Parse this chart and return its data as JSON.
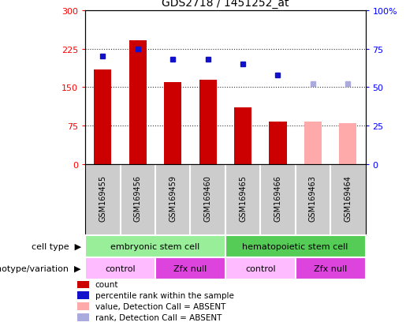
{
  "title": "GDS2718 / 1451252_at",
  "samples": [
    "GSM169455",
    "GSM169456",
    "GSM169459",
    "GSM169460",
    "GSM169465",
    "GSM169466",
    "GSM169463",
    "GSM169464"
  ],
  "bar_values": [
    185,
    242,
    160,
    165,
    110,
    83,
    83,
    80
  ],
  "bar_colors": [
    "#cc0000",
    "#cc0000",
    "#cc0000",
    "#cc0000",
    "#cc0000",
    "#cc0000",
    "#ffaaaa",
    "#ffaaaa"
  ],
  "rank_values": [
    70,
    75,
    68,
    68,
    65,
    58,
    52,
    52
  ],
  "rank_colors": [
    "#1111cc",
    "#1111cc",
    "#1111cc",
    "#1111cc",
    "#1111cc",
    "#1111cc",
    "#aaaadd",
    "#aaaadd"
  ],
  "ylim_left": [
    0,
    300
  ],
  "ylim_right": [
    0,
    100
  ],
  "yticks_left": [
    0,
    75,
    150,
    225,
    300
  ],
  "yticks_right": [
    0,
    25,
    50,
    75,
    100
  ],
  "ytick_labels_left": [
    "0",
    "75",
    "150",
    "225",
    "300"
  ],
  "ytick_labels_right": [
    "0",
    "25",
    "50",
    "75",
    "100%"
  ],
  "cell_type_groups": [
    {
      "label": "embryonic stem cell",
      "start": 0,
      "end": 4,
      "color": "#99ee99"
    },
    {
      "label": "hematopoietic stem cell",
      "start": 4,
      "end": 8,
      "color": "#55cc55"
    }
  ],
  "genotype_groups": [
    {
      "label": "control",
      "start": 0,
      "end": 2,
      "color": "#ffbbff"
    },
    {
      "label": "Zfx null",
      "start": 2,
      "end": 4,
      "color": "#dd44dd"
    },
    {
      "label": "control",
      "start": 4,
      "end": 6,
      "color": "#ffbbff"
    },
    {
      "label": "Zfx null",
      "start": 6,
      "end": 8,
      "color": "#dd44dd"
    }
  ],
  "legend_items": [
    {
      "label": "count",
      "color": "#cc0000"
    },
    {
      "label": "percentile rank within the sample",
      "color": "#1111cc"
    },
    {
      "label": "value, Detection Call = ABSENT",
      "color": "#ffaaaa"
    },
    {
      "label": "rank, Detection Call = ABSENT",
      "color": "#aaaadd"
    }
  ],
  "cell_type_label": "cell type",
  "genotype_label": "genotype/variation",
  "background_color": "#ffffff",
  "xtick_bg_color": "#cccccc",
  "plot_area_color": "#ffffff",
  "grid_linestyle": ":",
  "grid_color": "#333333",
  "grid_linewidth": 0.8
}
